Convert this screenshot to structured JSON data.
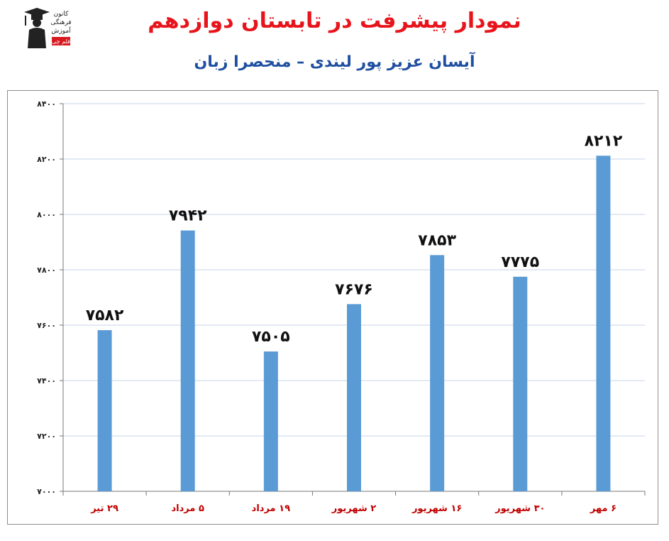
{
  "header": {
    "title": "نمودار پیشرفت در تابستان دوازدهم",
    "subtitle": "آیسان عزیز پور لیندی – منحصرا زبان"
  },
  "logo": {
    "icon": "graduate-icon",
    "lines": [
      "کانون",
      "فرهنگی",
      "آموزش",
      "قلم چی"
    ]
  },
  "colors": {
    "bar": "#5b9bd5",
    "title": "#e8141b",
    "subtitle": "#1f4fa0",
    "category_label": "#c00000",
    "grid": "#c5d4e8"
  },
  "chart_data": {
    "type": "bar",
    "categories": [
      "۲۹ تیر",
      "۵ مرداد",
      "۱۹ مرداد",
      "۲ شهریور",
      "۱۶ شهریور",
      "۳۰ شهریور",
      "۶ مهر"
    ],
    "values": [
      7582,
      7942,
      7505,
      7676,
      7853,
      7775,
      8212
    ],
    "value_labels": [
      "۷۵۸۲",
      "۷۹۴۲",
      "۷۵۰۵",
      "۷۶۷۶",
      "۷۸۵۳",
      "۷۷۷۵",
      "۸۲۱۲"
    ],
    "yticks": [
      7000,
      7200,
      7400,
      7600,
      7800,
      8000,
      8200,
      8400
    ],
    "ytick_labels": [
      "۷۰۰۰",
      "۷۲۰۰",
      "۷۴۰۰",
      "۷۶۰۰",
      "۷۸۰۰",
      "۸۰۰۰",
      "۸۲۰۰",
      "۸۴۰۰"
    ],
    "ylim": [
      7000,
      8400
    ],
    "grid": true,
    "legend": "none"
  }
}
